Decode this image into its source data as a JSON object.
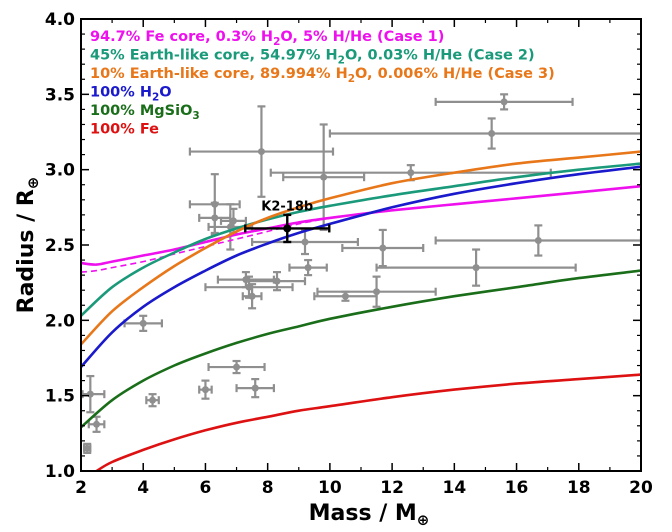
{
  "chart_data": {
    "type": "scatter",
    "title": "",
    "xlabel": "Mass / M",
    "xlabel_sub": "⊕",
    "ylabel": "Radius / R",
    "ylabel_sub": "⊕",
    "xlim": [
      2,
      20
    ],
    "ylim": [
      1.0,
      4.0
    ],
    "xticks": [
      2,
      4,
      6,
      8,
      10,
      12,
      14,
      16,
      18,
      20
    ],
    "xtick_labels": [
      "2",
      "4",
      "6",
      "8",
      "10",
      "12",
      "14",
      "16",
      "18",
      "20"
    ],
    "yticks": [
      1.0,
      1.5,
      2.0,
      2.5,
      3.0,
      3.5,
      4.0
    ],
    "ytick_labels": [
      "1.0",
      "1.5",
      "2.0",
      "2.5",
      "3.0",
      "3.5",
      "4.0"
    ],
    "legend_position": "top-left",
    "series": [
      {
        "name": "94.7% Fe core, 0.3% H2O, 5% H/He (Case 1)",
        "legend": [
          "94.7% Fe core, 0.3% H",
          "2",
          "O, 5% H/He (Case 1)"
        ],
        "color": "#ee11ee",
        "x": [
          2,
          2.5,
          3,
          4,
          5,
          6,
          7,
          8,
          9,
          10,
          12,
          14,
          16,
          18,
          20
        ],
        "y": [
          2.38,
          2.37,
          2.39,
          2.43,
          2.47,
          2.52,
          2.57,
          2.61,
          2.65,
          2.68,
          2.73,
          2.77,
          2.81,
          2.85,
          2.89
        ]
      },
      {
        "name": "45% Earth-like core, 54.97% H2O, 0.03% H/He (Case 2)",
        "legend": [
          "45% Earth-like core, 54.97% H",
          "2",
          "O, 0.03% H/He (Case 2)"
        ],
        "color": "#1a9a7a",
        "x": [
          2,
          3,
          4,
          5,
          6,
          7,
          8,
          9,
          10,
          12,
          14,
          16,
          18,
          20
        ],
        "y": [
          2.03,
          2.22,
          2.35,
          2.45,
          2.54,
          2.61,
          2.67,
          2.72,
          2.76,
          2.83,
          2.89,
          2.95,
          3.0,
          3.04
        ]
      },
      {
        "name": "10% Earth-like core, 89.994% H2O, 0.006% H/He (Case 3)",
        "legend": [
          "10% Earth-like core, 89.994% H",
          "2",
          "O, 0.006% H/He (Case 3)"
        ],
        "color": "#e8771a",
        "x": [
          2,
          3,
          4,
          5,
          6,
          7,
          8,
          9,
          10,
          12,
          14,
          16,
          18,
          20
        ],
        "y": [
          1.84,
          2.06,
          2.22,
          2.36,
          2.48,
          2.59,
          2.68,
          2.75,
          2.81,
          2.91,
          2.98,
          3.04,
          3.08,
          3.12
        ]
      },
      {
        "name": "100% H2O",
        "legend": [
          "100% H",
          "2",
          "O"
        ],
        "color": "#1a1acc",
        "x": [
          2,
          3,
          4,
          5,
          6,
          7,
          8,
          9,
          10,
          12,
          14,
          16,
          18,
          20
        ],
        "y": [
          1.69,
          1.92,
          2.09,
          2.22,
          2.33,
          2.43,
          2.51,
          2.58,
          2.64,
          2.75,
          2.84,
          2.91,
          2.97,
          3.02
        ]
      },
      {
        "name": "100% MgSiO3",
        "legend": [
          "100% MgSiO",
          "3",
          ""
        ],
        "color": "#1a6e1a",
        "x": [
          2,
          3,
          4,
          5,
          6,
          7,
          8,
          9,
          10,
          12,
          14,
          16,
          18,
          20
        ],
        "y": [
          1.29,
          1.47,
          1.6,
          1.7,
          1.78,
          1.85,
          1.91,
          1.96,
          2.01,
          2.09,
          2.16,
          2.22,
          2.28,
          2.33
        ]
      },
      {
        "name": "100% Fe",
        "legend": [
          "100% Fe",
          "",
          ""
        ],
        "color": "#dd1111",
        "x": [
          2.5,
          3,
          4,
          5,
          6,
          7,
          8,
          9,
          10,
          12,
          14,
          16,
          18,
          20
        ],
        "y": [
          1.0,
          1.06,
          1.14,
          1.21,
          1.27,
          1.32,
          1.36,
          1.4,
          1.43,
          1.49,
          1.54,
          1.58,
          1.61,
          1.64
        ]
      }
    ],
    "dashed_series": {
      "name": "Case 1 variant",
      "color": "#ee11ee",
      "x": [
        2,
        2.5,
        3,
        4,
        5,
        6,
        7,
        8,
        9,
        10
      ],
      "y": [
        2.32,
        2.33,
        2.35,
        2.39,
        2.44,
        2.49,
        2.54,
        2.59,
        2.64,
        2.68
      ]
    },
    "points": [
      {
        "x": 2.2,
        "y": 1.15,
        "xerr": [
          0.1,
          0.1
        ],
        "yerr": [
          0.03,
          0.03
        ]
      },
      {
        "x": 2.3,
        "y": 1.51,
        "xerr": [
          0.25,
          0.45
        ],
        "yerr": [
          0.12,
          0.12
        ]
      },
      {
        "x": 2.5,
        "y": 1.31,
        "xerr": [
          0.25,
          0.25
        ],
        "yerr": [
          0.05,
          0.05
        ]
      },
      {
        "x": 4.0,
        "y": 1.98,
        "xerr": [
          0.6,
          0.6
        ],
        "yerr": [
          0.05,
          0.05
        ]
      },
      {
        "x": 4.3,
        "y": 1.47,
        "xerr": [
          0.2,
          0.2
        ],
        "yerr": [
          0.04,
          0.04
        ]
      },
      {
        "x": 6.0,
        "y": 1.54,
        "xerr": [
          0.2,
          0.2
        ],
        "yerr": [
          0.06,
          0.06
        ]
      },
      {
        "x": 6.3,
        "y": 2.77,
        "xerr": [
          0.8,
          0.8
        ],
        "yerr": [
          0.2,
          0.2
        ]
      },
      {
        "x": 6.3,
        "y": 2.68,
        "xerr": [
          0.5,
          0.5
        ],
        "yerr": [
          0.1,
          0.1
        ]
      },
      {
        "x": 6.8,
        "y": 2.62,
        "xerr": [
          0.7,
          0.7
        ],
        "yerr": [
          0.15,
          0.15
        ]
      },
      {
        "x": 6.9,
        "y": 2.66,
        "xerr": [
          0.4,
          0.4
        ],
        "yerr": [
          0.08,
          0.08
        ]
      },
      {
        "x": 7.0,
        "y": 1.69,
        "xerr": [
          0.9,
          0.9
        ],
        "yerr": [
          0.04,
          0.04
        ]
      },
      {
        "x": 7.3,
        "y": 2.27,
        "xerr": [
          0.9,
          0.9
        ],
        "yerr": [
          0.05,
          0.05
        ]
      },
      {
        "x": 7.4,
        "y": 2.22,
        "xerr": [
          1.4,
          1.4
        ],
        "yerr": [
          0.07,
          0.07
        ]
      },
      {
        "x": 7.5,
        "y": 2.16,
        "xerr": [
          0.3,
          0.3
        ],
        "yerr": [
          0.08,
          0.08
        ]
      },
      {
        "x": 7.6,
        "y": 1.55,
        "xerr": [
          0.6,
          0.6
        ],
        "yerr": [
          0.06,
          0.06
        ]
      },
      {
        "x": 7.8,
        "y": 3.12,
        "xerr": [
          2.3,
          2.3
        ],
        "yerr": [
          0.3,
          0.3
        ]
      },
      {
        "x": 8.3,
        "y": 2.26,
        "xerr": [
          0.9,
          0.9
        ],
        "yerr": [
          0.06,
          0.06
        ]
      },
      {
        "x": 9.2,
        "y": 2.52,
        "xerr": [
          1.7,
          1.7
        ],
        "yerr": [
          0.08,
          0.08
        ]
      },
      {
        "x": 9.3,
        "y": 2.35,
        "xerr": [
          0.6,
          0.6
        ],
        "yerr": [
          0.05,
          0.05
        ]
      },
      {
        "x": 9.8,
        "y": 2.95,
        "xerr": [
          1.3,
          1.3
        ],
        "yerr": [
          0.35,
          0.35
        ]
      },
      {
        "x": 10.5,
        "y": 2.16,
        "xerr": [
          1.0,
          1.0
        ],
        "yerr": [
          0.03,
          0.03
        ]
      },
      {
        "x": 11.5,
        "y": 2.19,
        "xerr": [
          1.9,
          1.9
        ],
        "yerr": [
          0.1,
          0.1
        ]
      },
      {
        "x": 11.7,
        "y": 2.48,
        "xerr": [
          1.3,
          1.3
        ],
        "yerr": [
          0.12,
          0.12
        ]
      },
      {
        "x": 12.6,
        "y": 2.98,
        "xerr": [
          4.5,
          4.5
        ],
        "yerr": [
          0.05,
          0.05
        ]
      },
      {
        "x": 14.7,
        "y": 2.35,
        "xerr": [
          3.2,
          3.2
        ],
        "yerr": [
          0.12,
          0.12
        ]
      },
      {
        "x": 15.2,
        "y": 3.24,
        "xerr": [
          5.2,
          5.2
        ],
        "yerr": [
          0.1,
          0.1
        ]
      },
      {
        "x": 15.6,
        "y": 3.45,
        "xerr": [
          2.2,
          2.2
        ],
        "yerr": [
          0.05,
          0.05
        ]
      },
      {
        "x": 16.7,
        "y": 2.53,
        "xerr": [
          3.3,
          3.3
        ],
        "yerr": [
          0.1,
          0.1
        ]
      }
    ],
    "highlight": {
      "label": "K2-18b",
      "x": 8.63,
      "y": 2.61,
      "xerr": [
        1.35,
        1.35
      ],
      "yerr": [
        0.09,
        0.09
      ]
    }
  }
}
